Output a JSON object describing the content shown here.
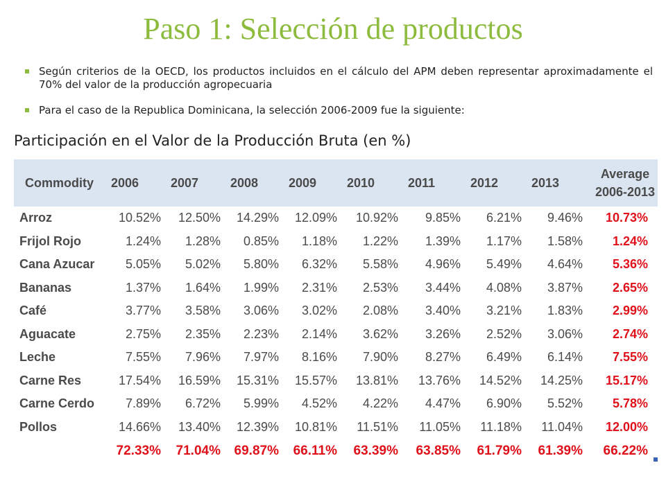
{
  "title": "Paso 1: Selección de productos",
  "bullets": [
    "Según criterios de la OECD,  los productos incluidos en el cálculo del APM deben representar aproximadamente el 70% del valor de la producción agropecuaria",
    "Para el caso de la Republica Dominicana, la selección 2006-2009 fue la siguiente:"
  ],
  "subtitle": "Participación en el Valor de la Producción Bruta (en %)",
  "table": {
    "headers": [
      "Commodity",
      "2006",
      "2007",
      "2008",
      "2009",
      "2010",
      "2011",
      "2012",
      "2013"
    ],
    "average_header_line1": "Average",
    "average_header_line2": "2006-2013",
    "rows": [
      [
        "Arroz",
        "10.52%",
        "12.50%",
        "14.29%",
        "12.09%",
        "10.92%",
        "9.85%",
        "6.21%",
        "9.46%",
        "10.73%"
      ],
      [
        "Frijol Rojo",
        "1.24%",
        "1.28%",
        "0.85%",
        "1.18%",
        "1.22%",
        "1.39%",
        "1.17%",
        "1.58%",
        "1.24%"
      ],
      [
        "Cana Azucar",
        "5.05%",
        "5.02%",
        "5.80%",
        "6.32%",
        "5.58%",
        "4.96%",
        "5.49%",
        "4.64%",
        "5.36%"
      ],
      [
        "Bananas",
        "1.37%",
        "1.64%",
        "1.99%",
        "2.31%",
        "2.53%",
        "3.44%",
        "4.08%",
        "3.87%",
        "2.65%"
      ],
      [
        "Café",
        "3.77%",
        "3.58%",
        "3.06%",
        "3.02%",
        "2.08%",
        "3.40%",
        "3.21%",
        "1.83%",
        "2.99%"
      ],
      [
        "Aguacate",
        "2.75%",
        "2.35%",
        "2.23%",
        "2.14%",
        "3.62%",
        "3.26%",
        "2.52%",
        "3.06%",
        "2.74%"
      ],
      [
        "Leche",
        "7.55%",
        "7.96%",
        "7.97%",
        "8.16%",
        "7.90%",
        "8.27%",
        "6.49%",
        "6.14%",
        "7.55%"
      ],
      [
        "Carne Res",
        "17.54%",
        "16.59%",
        "15.31%",
        "15.57%",
        "13.81%",
        "13.76%",
        "14.52%",
        "14.25%",
        "15.17%"
      ],
      [
        "Carne Cerdo",
        "7.89%",
        "6.72%",
        "5.99%",
        "4.52%",
        "4.22%",
        "4.47%",
        "6.90%",
        "5.52%",
        "5.78%"
      ],
      [
        "Pollos",
        "14.66%",
        "13.40%",
        "12.39%",
        "10.81%",
        "11.51%",
        "11.05%",
        "11.18%",
        "11.04%",
        "12.00%"
      ]
    ],
    "totals": [
      "",
      "72.33%",
      "71.04%",
      "69.87%",
      "66.11%",
      "63.39%",
      "63.85%",
      "61.79%",
      "61.39%",
      "66.22%"
    ]
  },
  "colors": {
    "title": "#8dbb3e",
    "header_bg": "#dbe5f1",
    "highlight": "#e0101a"
  }
}
